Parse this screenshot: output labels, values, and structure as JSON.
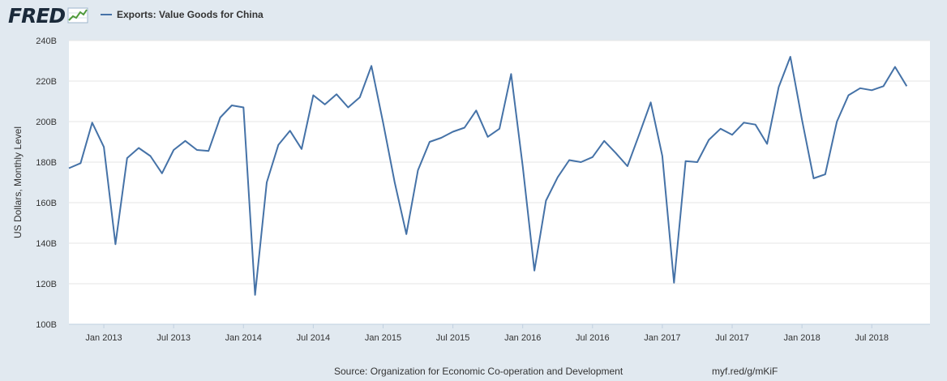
{
  "header": {
    "logo": "FRED",
    "legend_label": "Exports: Value Goods for China",
    "legend_color": "#4572a7"
  },
  "footer": {
    "source": "Source: Organization for Economic Co-operation and Development",
    "url": "myf.red/g/mKiF"
  },
  "chart_data": {
    "type": "line",
    "ylabel": "US Dollars, Monthly Level",
    "ylim": [
      100,
      240
    ],
    "yticks": [
      100,
      120,
      140,
      160,
      180,
      200,
      220,
      240
    ],
    "ytick_labels": [
      "100B",
      "120B",
      "140B",
      "160B",
      "180B",
      "200B",
      "220B",
      "240B"
    ],
    "xlim": [
      "2012-10",
      "2018-12"
    ],
    "xticks": [
      "2013-01",
      "2013-07",
      "2014-01",
      "2014-07",
      "2015-01",
      "2015-07",
      "2016-01",
      "2016-07",
      "2017-01",
      "2017-07",
      "2018-01",
      "2018-07"
    ],
    "xtick_labels": [
      "Jan 2013",
      "Jul 2013",
      "Jan 2014",
      "Jul 2014",
      "Jan 2015",
      "Jul 2015",
      "Jan 2016",
      "Jul 2016",
      "Jan 2017",
      "Jul 2017",
      "Jan 2018",
      "Jul 2018"
    ],
    "grid": true,
    "series": [
      {
        "name": "Exports: Value Goods for China",
        "color": "#4572a7",
        "x": [
          "2012-10",
          "2012-11",
          "2012-12",
          "2013-01",
          "2013-02",
          "2013-03",
          "2013-04",
          "2013-05",
          "2013-06",
          "2013-07",
          "2013-08",
          "2013-09",
          "2013-10",
          "2013-11",
          "2013-12",
          "2014-01",
          "2014-02",
          "2014-03",
          "2014-04",
          "2014-05",
          "2014-06",
          "2014-07",
          "2014-08",
          "2014-09",
          "2014-10",
          "2014-11",
          "2014-12",
          "2015-01",
          "2015-02",
          "2015-03",
          "2015-04",
          "2015-05",
          "2015-06",
          "2015-07",
          "2015-08",
          "2015-09",
          "2015-10",
          "2015-11",
          "2015-12",
          "2016-01",
          "2016-02",
          "2016-03",
          "2016-04",
          "2016-05",
          "2016-06",
          "2016-07",
          "2016-08",
          "2016-09",
          "2016-10",
          "2016-11",
          "2016-12",
          "2017-01",
          "2017-02",
          "2017-03",
          "2017-04",
          "2017-05",
          "2017-06",
          "2017-07",
          "2017-08",
          "2017-09",
          "2017-10",
          "2017-11",
          "2017-12",
          "2018-01",
          "2018-02",
          "2018-03",
          "2018-04",
          "2018-05",
          "2018-06",
          "2018-07",
          "2018-08",
          "2018-09",
          "2018-10"
        ],
        "values": [
          177,
          179.5,
          199.5,
          187.5,
          139.5,
          182,
          187,
          183,
          174.5,
          186,
          190.5,
          186,
          185.5,
          202,
          208,
          207,
          114.5,
          170,
          188.5,
          195.5,
          186.5,
          213,
          208.5,
          213.5,
          207,
          212,
          227.5,
          199.5,
          170,
          144.5,
          176,
          190,
          192,
          195,
          197,
          205.5,
          192.5,
          196.5,
          223.5,
          178,
          126.5,
          161,
          172.5,
          181,
          180,
          182.5,
          190.5,
          184.5,
          178,
          193.5,
          209.5,
          183,
          120.5,
          180.5,
          180,
          191,
          196.5,
          193.5,
          199.5,
          198.5,
          189,
          217,
          232,
          201,
          172,
          174,
          200,
          213,
          216.5,
          215.5,
          217.5,
          227,
          217.5
        ]
      }
    ]
  }
}
